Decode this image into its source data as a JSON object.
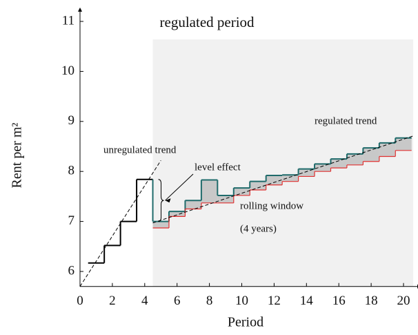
{
  "chart_data": {
    "type": "step",
    "xlabel": "Period",
    "ylabel": "Rent per m²",
    "xlim": [
      0,
      20.6
    ],
    "ylim": [
      5.7,
      11.25
    ],
    "xticks": [
      0,
      2,
      4,
      6,
      8,
      10,
      12,
      14,
      16,
      18,
      20
    ],
    "yticks": [
      6,
      7,
      8,
      9,
      10,
      11
    ],
    "regulated_period": {
      "label": "regulated period",
      "xstart": 4.5,
      "ytop": 10.64
    },
    "series": [
      {
        "color": "#000000",
        "x": [
          1,
          2,
          3,
          4
        ],
        "values": [
          6.17,
          6.52,
          7.0,
          7.84
        ]
      },
      {
        "color": "#1f6b6b",
        "x": [
          5,
          6,
          7,
          8,
          9,
          10,
          11,
          12,
          13,
          14,
          15,
          16,
          17,
          18,
          19,
          20
        ],
        "values": [
          7.0,
          7.2,
          7.42,
          7.83,
          7.52,
          7.67,
          7.8,
          7.92,
          7.93,
          8.05,
          8.15,
          8.25,
          8.35,
          8.47,
          8.57,
          8.67
        ]
      },
      {
        "color": "#e03030",
        "x": [
          5,
          6,
          7,
          8,
          9,
          10,
          11,
          12,
          13,
          14,
          15,
          16,
          17,
          18,
          19,
          20
        ],
        "values": [
          6.87,
          7.1,
          7.25,
          7.37,
          7.37,
          7.52,
          7.63,
          7.73,
          7.8,
          7.9,
          8.0,
          8.07,
          8.13,
          8.2,
          8.3,
          8.42
        ]
      }
    ],
    "trends": [
      {
        "name": "unregulated trend",
        "x": [
          0,
          5
        ],
        "y": [
          5.7,
          8.22
        ]
      },
      {
        "name": "regulated trend",
        "x": [
          4.5,
          20.6
        ],
        "y": [
          6.97,
          8.71
        ]
      }
    ],
    "annotations": {
      "level_effect": "level effect",
      "rolling_window": "rolling window",
      "window_length": "(4 years)"
    }
  }
}
